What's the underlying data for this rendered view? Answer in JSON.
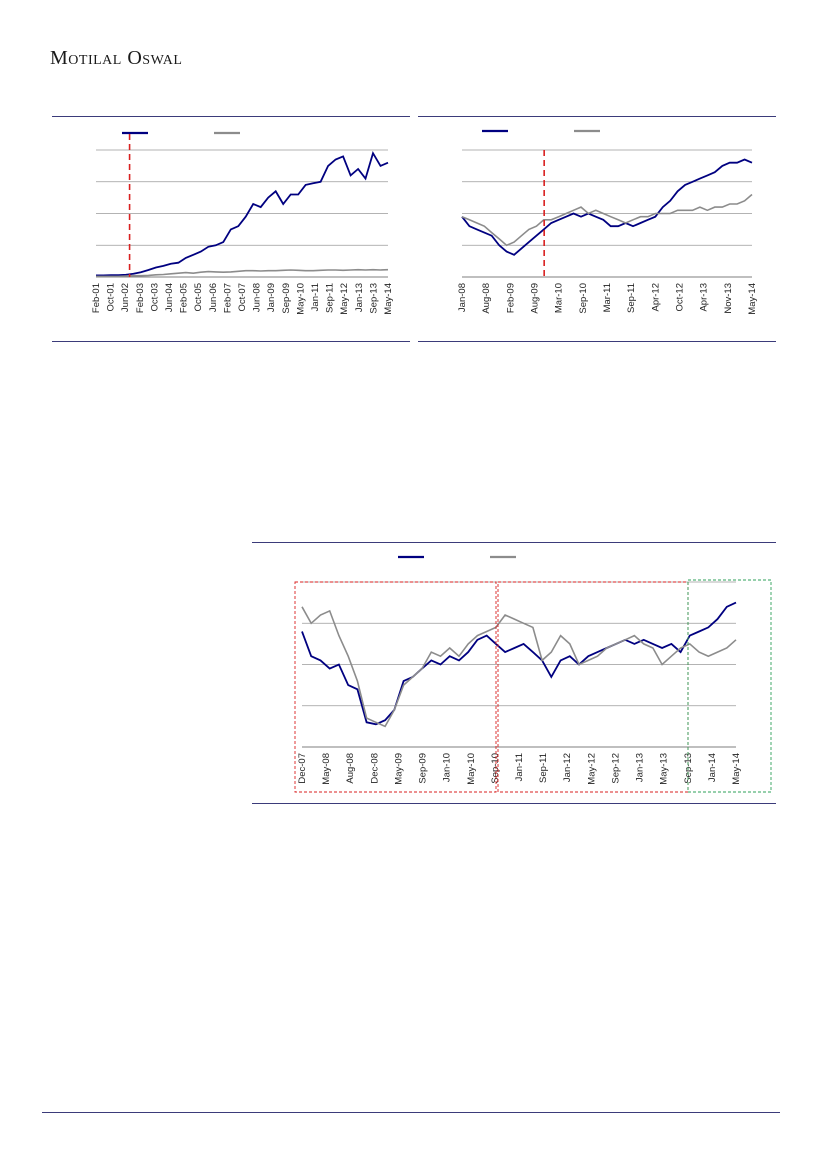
{
  "header": {
    "brand_first": "M",
    "brand_rest1": "OTILAL",
    "brand_first2": "O",
    "brand_rest2": "SWAL"
  },
  "colors": {
    "primary": "#000080",
    "secondary": "#8c8c8c",
    "red_line": "#d92020",
    "green_box": "#2ea05a",
    "grid": "#9a9a9a",
    "rule": "#3b3b7a"
  },
  "chart_data": [
    {
      "type": "line",
      "x_ticks": [
        "Feb-01",
        "Oct-01",
        "Jun-02",
        "Feb-03",
        "Oct-03",
        "Jun-04",
        "Feb-05",
        "Oct-05",
        "Jun-06",
        "Feb-07",
        "Oct-07",
        "Jun-08",
        "Jan-09",
        "Sep-09",
        "May-10",
        "Jan-11",
        "Sep-11",
        "May-12",
        "Jan-13",
        "Sep-13",
        "May-14"
      ],
      "ylim": [
        0,
        4
      ],
      "grid": true,
      "legend": "top-left",
      "marker_x": 2.3,
      "series": [
        {
          "values": [
            0.05,
            0.05,
            0.06,
            0.06,
            0.07,
            0.1,
            0.15,
            0.22,
            0.3,
            0.35,
            0.42,
            0.45,
            0.6,
            0.7,
            0.8,
            0.95,
            1.0,
            1.1,
            1.5,
            1.6,
            1.9,
            2.3,
            2.2,
            2.5,
            2.7,
            2.3,
            2.6,
            2.6,
            2.9,
            2.95,
            3.0,
            3.5,
            3.7,
            3.8,
            3.2,
            3.4,
            3.1,
            3.9,
            3.5,
            3.6
          ]
        },
        {
          "values": [
            0.02,
            0.02,
            0.02,
            0.02,
            0.03,
            0.04,
            0.04,
            0.05,
            0.07,
            0.08,
            0.1,
            0.12,
            0.14,
            0.12,
            0.15,
            0.17,
            0.16,
            0.15,
            0.16,
            0.18,
            0.2,
            0.2,
            0.19,
            0.2,
            0.2,
            0.21,
            0.22,
            0.21,
            0.2,
            0.2,
            0.21,
            0.22,
            0.22,
            0.21,
            0.22,
            0.23,
            0.22,
            0.23,
            0.22,
            0.23
          ]
        }
      ]
    },
    {
      "type": "line",
      "x_ticks": [
        "Jan-08",
        "Aug-08",
        "Feb-09",
        "Aug-09",
        "Mar-10",
        "Sep-10",
        "Mar-11",
        "Sep-11",
        "Apr-12",
        "Oct-12",
        "Apr-13",
        "Nov-13",
        "May-14"
      ],
      "ylim": [
        0,
        4
      ],
      "grid": true,
      "legend": "top-left",
      "marker_x": 3.4,
      "series": [
        {
          "values": [
            1.9,
            1.6,
            1.5,
            1.4,
            1.3,
            1.0,
            0.8,
            0.7,
            0.9,
            1.1,
            1.3,
            1.5,
            1.7,
            1.8,
            1.9,
            2.0,
            1.9,
            2.0,
            1.9,
            1.8,
            1.6,
            1.6,
            1.7,
            1.6,
            1.7,
            1.8,
            1.9,
            2.2,
            2.4,
            2.7,
            2.9,
            3.0,
            3.1,
            3.2,
            3.3,
            3.5,
            3.6,
            3.6,
            3.7,
            3.6
          ]
        },
        {
          "values": [
            1.9,
            1.8,
            1.7,
            1.6,
            1.4,
            1.2,
            1.0,
            1.1,
            1.3,
            1.5,
            1.6,
            1.8,
            1.8,
            1.9,
            2.0,
            2.1,
            2.2,
            2.0,
            2.1,
            2.0,
            1.9,
            1.8,
            1.7,
            1.8,
            1.9,
            1.9,
            2.0,
            2.0,
            2.0,
            2.1,
            2.1,
            2.1,
            2.2,
            2.1,
            2.2,
            2.2,
            2.3,
            2.3,
            2.4,
            2.6
          ]
        }
      ]
    },
    {
      "type": "line",
      "x_ticks": [
        "Dec-07",
        "May-08",
        "Aug-08",
        "Dec-08",
        "May-09",
        "Sep-09",
        "Jan-10",
        "May-10",
        "Sep-10",
        "Jan-11",
        "Sep-11",
        "Jan-12",
        "May-12",
        "Sep-12",
        "Jan-13",
        "May-13",
        "Sep-13",
        "Jan-14",
        "May-14"
      ],
      "ylim": [
        0,
        4
      ],
      "grid": true,
      "legend": "top-center",
      "series": [
        {
          "values": [
            2.8,
            2.2,
            2.1,
            1.9,
            2.0,
            1.5,
            1.4,
            0.6,
            0.55,
            0.65,
            0.9,
            1.6,
            1.7,
            1.9,
            2.1,
            2.0,
            2.2,
            2.1,
            2.3,
            2.6,
            2.7,
            2.5,
            2.3,
            2.4,
            2.5,
            2.3,
            2.1,
            1.7,
            2.1,
            2.2,
            2.0,
            2.2,
            2.3,
            2.4,
            2.5,
            2.6,
            2.5,
            2.6,
            2.5,
            2.4,
            2.5,
            2.3,
            2.7,
            2.8,
            2.9,
            3.1,
            3.4,
            3.5
          ]
        },
        {
          "values": [
            3.4,
            3.0,
            3.2,
            3.3,
            2.7,
            2.2,
            1.6,
            0.7,
            0.6,
            0.5,
            0.9,
            1.5,
            1.7,
            1.9,
            2.3,
            2.2,
            2.4,
            2.2,
            2.5,
            2.7,
            2.8,
            2.9,
            3.2,
            3.1,
            3.0,
            2.9,
            2.1,
            2.3,
            2.7,
            2.5,
            2.0,
            2.1,
            2.2,
            2.4,
            2.5,
            2.6,
            2.7,
            2.5,
            2.4,
            2.0,
            2.2,
            2.4,
            2.5,
            2.3,
            2.2,
            2.3,
            2.4,
            2.6
          ]
        }
      ]
    }
  ]
}
